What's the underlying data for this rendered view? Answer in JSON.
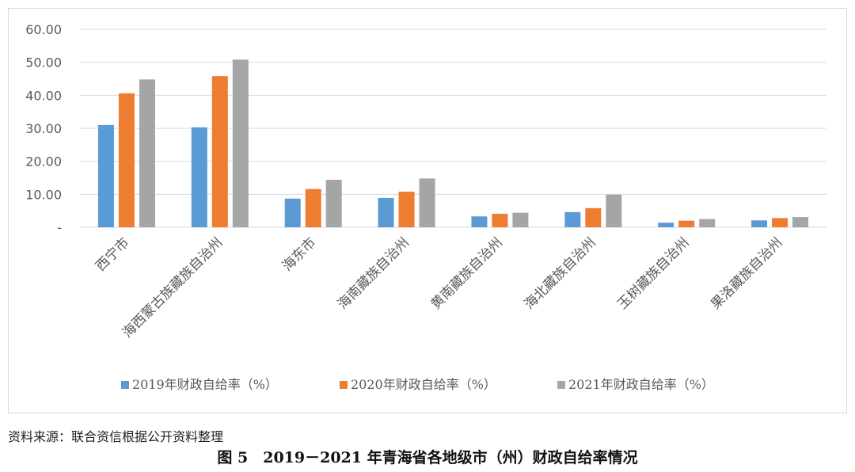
{
  "chart_data": {
    "type": "bar",
    "categories": [
      "西宁市",
      "海西蒙古族藏族自治州",
      "海东市",
      "海南藏族自治州",
      "黄南藏族自治州",
      "海北藏族自治州",
      "玉树藏族自治州",
      "果洛藏族自治州"
    ],
    "series": [
      {
        "name": "2019年财政自给率（%）",
        "color": "#5b9bd5",
        "values": [
          31.0,
          30.3,
          8.7,
          8.9,
          3.3,
          4.6,
          1.4,
          2.1
        ]
      },
      {
        "name": "2020年财政自给率（%）",
        "color": "#ed7d31",
        "values": [
          40.6,
          45.8,
          11.6,
          10.8,
          4.1,
          5.8,
          2.0,
          2.8
        ]
      },
      {
        "name": "2021年财政自给率（%）",
        "color": "#a5a5a5",
        "values": [
          44.8,
          50.8,
          14.4,
          14.8,
          4.4,
          9.9,
          2.5,
          3.1
        ]
      }
    ],
    "ylim": [
      0,
      60
    ],
    "yticks": [
      "-",
      "10.00",
      "20.00",
      "30.00",
      "40.00",
      "50.00",
      "60.00"
    ],
    "grid": true,
    "legend": "bottom"
  },
  "source_note": "资料来源：联合资信根据公开资料整理",
  "caption": "图 5　2019－2021 年青海省各地级市（州）财政自给率情况"
}
